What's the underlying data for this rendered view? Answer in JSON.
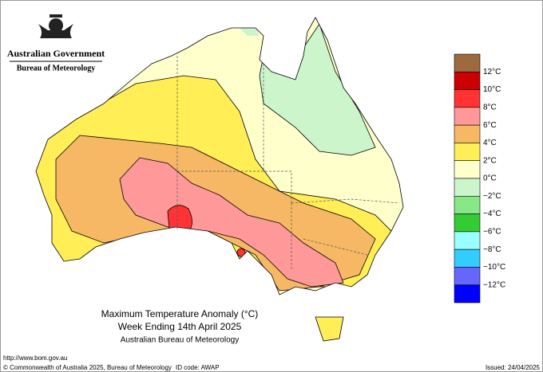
{
  "header": {
    "agency": "Australian Government",
    "bureau": "Bureau of Meteorology"
  },
  "title": {
    "line1": "Maximum Temperature Anomaly (°C)",
    "line2": "Week Ending 14th April 2025",
    "line3": "Australian Bureau of Meteorology"
  },
  "legend": {
    "colors": [
      "#9c6a3c",
      "#cc0000",
      "#ff3333",
      "#ff9999",
      "#f7b866",
      "#ffee55",
      "#ffffcc",
      "#ccf5cc",
      "#88e888",
      "#33cc33",
      "#99ffff",
      "#33ccff",
      "#6666ff",
      "#0000ff"
    ],
    "labels": [
      "12°C",
      "10°C",
      "8°C",
      "6°C",
      "4°C",
      "2°C",
      "0°C",
      "−2°C",
      "−4°C",
      "−6°C",
      "−8°C",
      "−10°C",
      "−12°C"
    ]
  },
  "footer": {
    "url": "http://www.bom.gov.au",
    "copyright": "© Commonwealth of Australia 2025, Bureau of Meteorology",
    "id_code": "ID code: AWAP",
    "issued": "Issued: 24/04/2025"
  }
}
